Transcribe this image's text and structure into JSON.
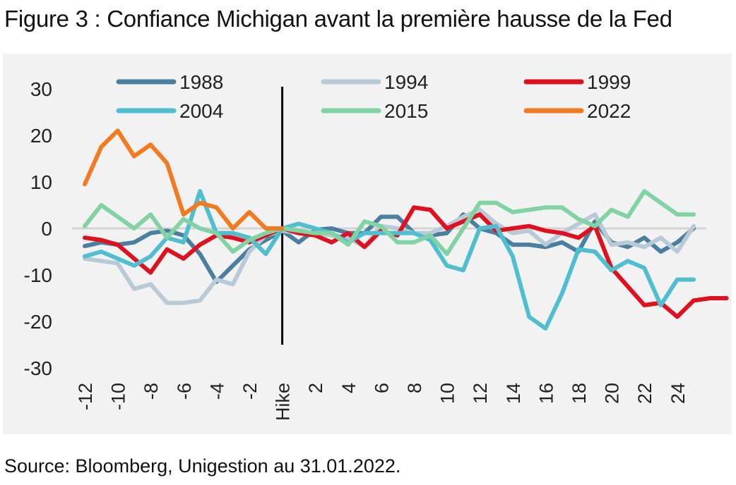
{
  "title": "Figure 3 : Confiance Michigan avant la première hausse de la Fed",
  "source": "Source: Bloomberg, Unigestion au 31.01.2022.",
  "chart_data": {
    "type": "line",
    "title": "Figure 3 : Confiance Michigan avant la première hausse de la Fed",
    "xlabel": "",
    "ylabel": "",
    "ylim": [
      -30,
      30
    ],
    "yticks": [
      30,
      20,
      10,
      0,
      -10,
      -20,
      -30
    ],
    "xlim": [
      -12,
      25
    ],
    "xticks": [
      {
        "x": -12,
        "label": "-12"
      },
      {
        "x": -10,
        "label": "-10"
      },
      {
        "x": -8,
        "label": "-8"
      },
      {
        "x": -6,
        "label": "-6"
      },
      {
        "x": -4,
        "label": "-4"
      },
      {
        "x": -2,
        "label": "-2"
      },
      {
        "x": 0,
        "label": "Hike"
      },
      {
        "x": 2,
        "label": "2"
      },
      {
        "x": 4,
        "label": "4"
      },
      {
        "x": 6,
        "label": "6"
      },
      {
        "x": 8,
        "label": "8"
      },
      {
        "x": 10,
        "label": "10"
      },
      {
        "x": 12,
        "label": "12"
      },
      {
        "x": 14,
        "label": "14"
      },
      {
        "x": 16,
        "label": "16"
      },
      {
        "x": 18,
        "label": "18"
      },
      {
        "x": 20,
        "label": "20"
      },
      {
        "x": 22,
        "label": "22"
      },
      {
        "x": 24,
        "label": "24"
      }
    ],
    "zero_line": true,
    "hike_marker_x": 0,
    "legend_position": "top",
    "series": [
      {
        "name": "1988",
        "color": "#4a7fa0",
        "x_start": -12,
        "values": [
          -3.8,
          -3,
          -3.5,
          -3,
          -1,
          -0.5,
          -1.5,
          -5.5,
          -11.5,
          -8,
          -4.5,
          -2.5,
          -0.5,
          -3,
          -0.3,
          0,
          -1,
          -1,
          2.5,
          2.5,
          -1,
          -1.5,
          -1,
          3,
          0,
          -1,
          -3.5,
          -3.5,
          -4,
          -3,
          -5,
          1.5,
          -3,
          -4,
          -2,
          -5,
          -3,
          0
        ]
      },
      {
        "name": "1994",
        "color": "#b8cad6",
        "x_start": -12,
        "values": [
          -6.5,
          -7,
          -7.5,
          -13,
          -12,
          -16,
          -16,
          -15.5,
          -11,
          -12,
          -5,
          -1.5,
          -0.5,
          -1,
          -1,
          -1.5,
          -2,
          -4,
          0.5,
          0,
          -1,
          -1,
          0.5,
          2.5,
          4,
          1,
          -1,
          -0.5,
          -3.5,
          -1,
          1,
          3,
          -3.5,
          -3,
          -4,
          -2,
          -5,
          0.5
        ]
      },
      {
        "name": "1999",
        "color": "#e0101e",
        "x_start": -12,
        "values": [
          -2,
          -2.5,
          -3.5,
          -6.5,
          -9.5,
          -4.5,
          -6.5,
          -3.5,
          -1.5,
          -2,
          -3,
          -1.5,
          0,
          -1,
          -1.5,
          -3,
          -1,
          -4,
          -0.5,
          -1.5,
          4.5,
          4,
          0,
          1.5,
          3,
          -0.5,
          0,
          0.5,
          -0.5,
          -1,
          -2,
          0.5,
          -8.5,
          -12.5,
          -16.5,
          -16,
          -19,
          -15.5,
          -15,
          -15
        ]
      },
      {
        "name": "2004",
        "color": "#4fbfcf",
        "x_start": -12,
        "values": [
          -6,
          -5,
          -6.5,
          -8,
          -6,
          -2,
          -3,
          8,
          -1,
          -1,
          -2,
          -5.5,
          0,
          1,
          0,
          -1,
          -3,
          -1,
          -1,
          -1,
          -1,
          -2.5,
          -8,
          -9,
          0,
          0.5,
          -6,
          -19,
          -21.5,
          -14,
          -4.5,
          -5,
          -9,
          -7,
          -8.5,
          -16.5,
          -11,
          -11
        ]
      },
      {
        "name": "2015",
        "color": "#82d3a4",
        "x_start": -12,
        "values": [
          0.5,
          5,
          2.5,
          0,
          3,
          -2,
          2,
          0,
          -1,
          -5,
          -2.5,
          -1,
          0,
          -0.5,
          -1,
          -1,
          -3.5,
          1.5,
          0.5,
          -3,
          -3,
          -1.5,
          -5.5,
          0,
          5.5,
          5.5,
          3.5,
          4,
          4.5,
          4.5,
          2,
          0.5,
          4,
          2.5,
          8,
          5.5,
          3,
          3
        ]
      },
      {
        "name": "2022",
        "color": "#f47a20",
        "x_start": -12,
        "values": [
          9.5,
          17.5,
          21,
          15.5,
          18,
          14,
          3,
          5.5,
          4.5,
          0,
          3.5,
          0,
          0
        ]
      }
    ]
  }
}
